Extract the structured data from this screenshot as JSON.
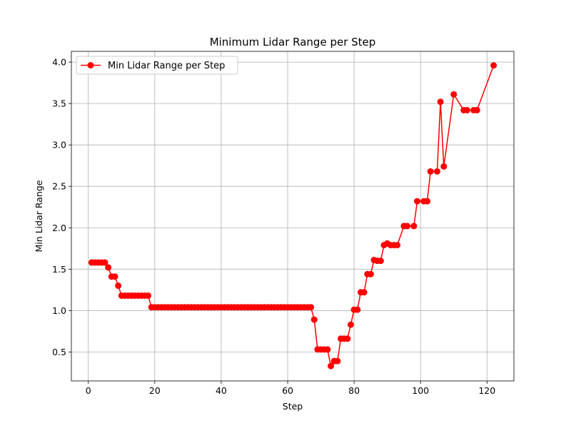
{
  "chart_data": {
    "type": "line",
    "title": "Minimum Lidar Range per Step",
    "xlabel": "Step",
    "ylabel": "Min Lidar Range",
    "xlim": [
      -5.1,
      128.1
    ],
    "ylim": [
      0.15,
      4.13
    ],
    "xticks": [
      0,
      20,
      40,
      60,
      80,
      100,
      120
    ],
    "yticks": [
      0.5,
      1.0,
      1.5,
      2.0,
      2.5,
      3.0,
      3.5,
      4.0
    ],
    "xtick_labels": [
      "0",
      "20",
      "40",
      "60",
      "80",
      "100",
      "120"
    ],
    "ytick_labels": [
      "0.5",
      "1.0",
      "1.5",
      "2.0",
      "2.5",
      "3.0",
      "3.5",
      "4.0"
    ],
    "grid": true,
    "legend_placement": "top-left",
    "series": [
      {
        "name": "Min Lidar Range per Step",
        "color": "#ff0000",
        "marker": "circle",
        "x": [
          1,
          2,
          3,
          4,
          5,
          6,
          7,
          8,
          9,
          10,
          11,
          12,
          13,
          14,
          15,
          16,
          17,
          18,
          19,
          20,
          21,
          22,
          23,
          24,
          25,
          26,
          27,
          28,
          29,
          30,
          31,
          32,
          33,
          34,
          35,
          36,
          37,
          38,
          39,
          40,
          41,
          42,
          43,
          44,
          45,
          46,
          47,
          48,
          49,
          50,
          51,
          52,
          53,
          54,
          55,
          56,
          57,
          58,
          59,
          60,
          61,
          62,
          63,
          64,
          65,
          66,
          67,
          68,
          69,
          70,
          71,
          72,
          73,
          74,
          75,
          76,
          77,
          78,
          79,
          80,
          81,
          82,
          83,
          84,
          85,
          86,
          87,
          88,
          89,
          90,
          91,
          92,
          93,
          95,
          96,
          98,
          99,
          101,
          102,
          103,
          105,
          106,
          107,
          110,
          113,
          114,
          116,
          117,
          122
        ],
        "y": [
          1.58,
          1.58,
          1.58,
          1.58,
          1.58,
          1.52,
          1.41,
          1.41,
          1.3,
          1.18,
          1.18,
          1.18,
          1.18,
          1.18,
          1.18,
          1.18,
          1.18,
          1.18,
          1.04,
          1.04,
          1.04,
          1.04,
          1.04,
          1.04,
          1.04,
          1.04,
          1.04,
          1.04,
          1.04,
          1.04,
          1.04,
          1.04,
          1.04,
          1.04,
          1.04,
          1.04,
          1.04,
          1.04,
          1.04,
          1.04,
          1.04,
          1.04,
          1.04,
          1.04,
          1.04,
          1.04,
          1.04,
          1.04,
          1.04,
          1.04,
          1.04,
          1.04,
          1.04,
          1.04,
          1.04,
          1.04,
          1.04,
          1.04,
          1.04,
          1.04,
          1.04,
          1.04,
          1.04,
          1.04,
          1.04,
          1.04,
          1.04,
          0.89,
          0.53,
          0.53,
          0.53,
          0.53,
          0.33,
          0.39,
          0.39,
          0.66,
          0.66,
          0.66,
          0.83,
          1.01,
          1.01,
          1.22,
          1.22,
          1.44,
          1.44,
          1.61,
          1.6,
          1.6,
          1.79,
          1.81,
          1.79,
          1.79,
          1.79,
          2.02,
          2.02,
          2.02,
          2.32,
          2.32,
          2.32,
          2.68,
          2.68,
          3.52,
          2.74,
          3.61,
          3.42,
          3.42,
          3.42,
          3.42,
          3.96
        ]
      }
    ]
  }
}
